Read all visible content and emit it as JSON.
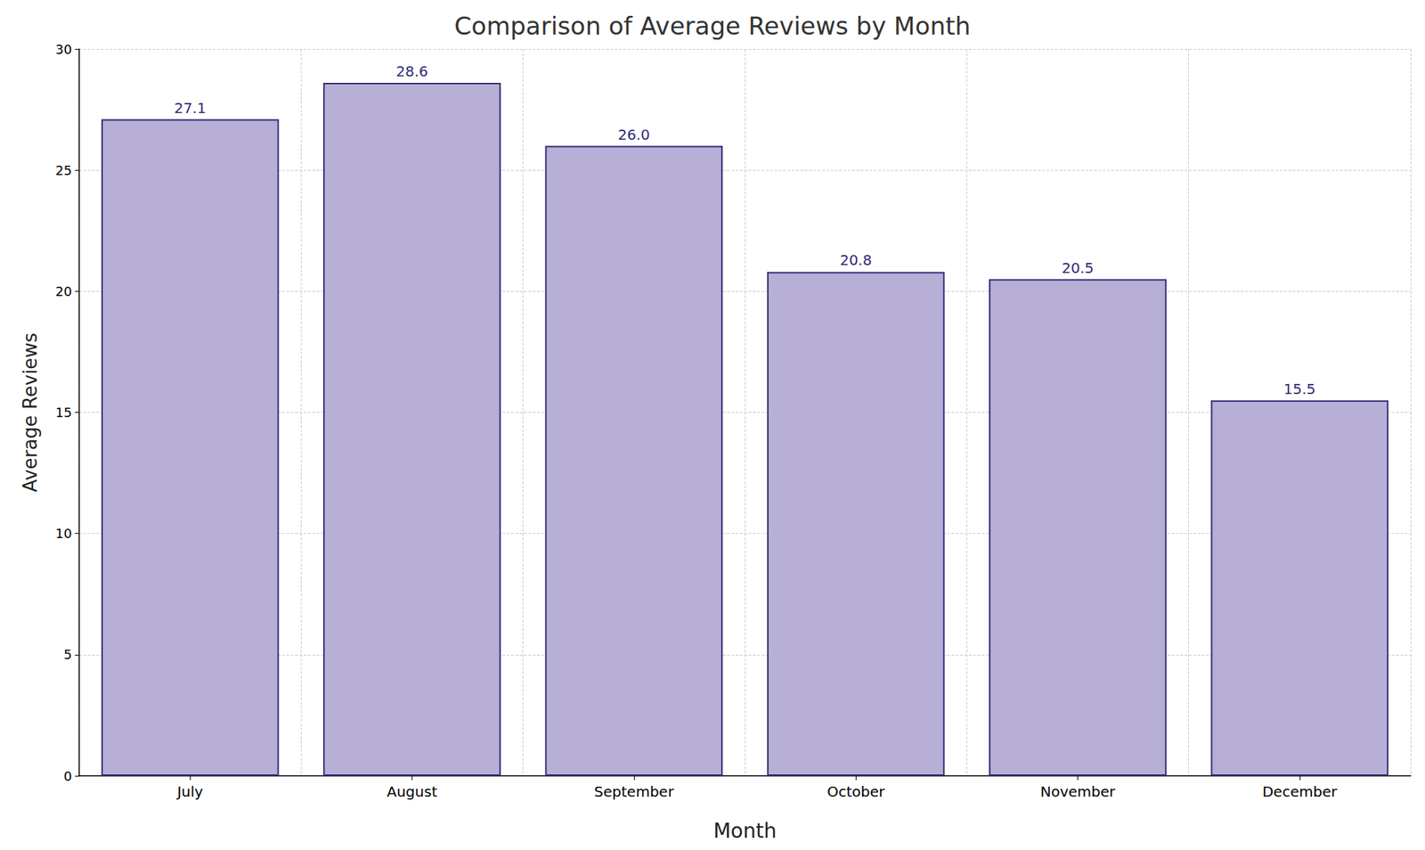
{
  "chart_data": {
    "type": "bar",
    "title": "Comparison of Average Reviews by Month",
    "x_label": "Month",
    "y_label": "Average Reviews",
    "categories": [
      "July",
      "August",
      "September",
      "October",
      "November",
      "December"
    ],
    "values": [
      27.1,
      28.6,
      26.0,
      20.8,
      20.5,
      15.5
    ],
    "value_labels": [
      "27.1",
      "28.6",
      "26.0",
      "20.8",
      "20.5",
      "15.5"
    ],
    "color": "#b7afd5",
    "ylim": [
      0,
      30
    ],
    "yticks": [
      0,
      5,
      10,
      15,
      20,
      25,
      30
    ],
    "grid": true,
    "data_labels": true
  }
}
